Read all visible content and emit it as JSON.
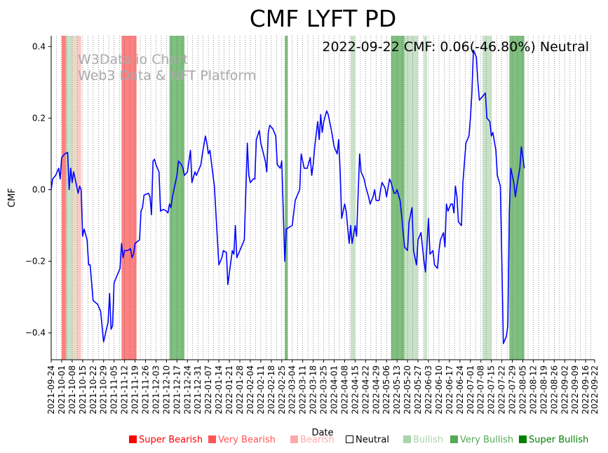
{
  "chart_data": {
    "type": "line",
    "title": "CMF LYFT PD",
    "xlabel": "Date",
    "ylabel": "CMF",
    "ylim": [
      -0.475,
      0.43
    ],
    "yticks": [
      -0.4,
      -0.2,
      0.0,
      0.2,
      0.4
    ],
    "ytick_labels": [
      "−0.4",
      "−0.2",
      "0.0",
      "0.2",
      "0.4"
    ],
    "x_start": "2021-09-24",
    "x_end": "2022-09-22",
    "date_ticks": [
      "2021-09-24",
      "2021-10-01",
      "2021-10-08",
      "2021-10-15",
      "2021-10-22",
      "2021-10-29",
      "2021-11-05",
      "2021-11-12",
      "2021-11-19",
      "2021-11-26",
      "2021-12-03",
      "2021-12-10",
      "2021-12-17",
      "2021-12-24",
      "2021-12-31",
      "2022-01-07",
      "2022-01-14",
      "2022-01-21",
      "2022-01-28",
      "2022-02-04",
      "2022-02-11",
      "2022-02-18",
      "2022-02-25",
      "2022-03-04",
      "2022-03-11",
      "2022-03-18",
      "2022-03-25",
      "2022-04-01",
      "2022-04-08",
      "2022-04-15",
      "2022-04-22",
      "2022-04-29",
      "2022-05-06",
      "2022-05-13",
      "2022-05-20",
      "2022-05-27",
      "2022-06-03",
      "2022-06-10",
      "2022-06-17",
      "2022-06-24",
      "2022-07-01",
      "2022-07-08",
      "2022-07-15",
      "2022-07-22",
      "2022-07-29",
      "2022-08-05",
      "2022-08-12",
      "2022-08-19",
      "2022-08-26",
      "2022-09-02",
      "2022-09-09",
      "2022-09-16",
      "2022-09-22"
    ],
    "series": [
      {
        "name": "CMF",
        "color": "#0000ff",
        "points": [
          [
            "2021-09-24",
            0.0
          ],
          [
            "2021-09-25",
            0.03
          ],
          [
            "2021-09-27",
            0.04
          ],
          [
            "2021-09-28",
            0.05
          ],
          [
            "2021-09-29",
            0.06
          ],
          [
            "2021-09-30",
            0.03
          ],
          [
            "2021-10-01",
            0.09
          ],
          [
            "2021-10-03",
            0.1
          ],
          [
            "2021-10-05",
            0.104
          ],
          [
            "2021-10-06",
            0.0
          ],
          [
            "2021-10-07",
            0.06
          ],
          [
            "2021-10-08",
            0.02
          ],
          [
            "2021-10-09",
            0.05
          ],
          [
            "2021-10-11",
            0.01
          ],
          [
            "2021-10-12",
            -0.01
          ],
          [
            "2021-10-13",
            0.01
          ],
          [
            "2021-10-14",
            0.0
          ],
          [
            "2021-10-15",
            -0.13
          ],
          [
            "2021-10-16",
            -0.11
          ],
          [
            "2021-10-18",
            -0.14
          ],
          [
            "2021-10-19",
            -0.21
          ],
          [
            "2021-10-20",
            -0.21
          ],
          [
            "2021-10-22",
            -0.31
          ],
          [
            "2021-10-25",
            -0.32
          ],
          [
            "2021-10-27",
            -0.34
          ],
          [
            "2021-10-29",
            -0.425
          ],
          [
            "2021-11-01",
            -0.37
          ],
          [
            "2021-11-02",
            -0.29
          ],
          [
            "2021-11-03",
            -0.39
          ],
          [
            "2021-11-04",
            -0.38
          ],
          [
            "2021-11-05",
            -0.26
          ],
          [
            "2021-11-07",
            -0.24
          ],
          [
            "2021-11-09",
            -0.22
          ],
          [
            "2021-11-10",
            -0.15
          ],
          [
            "2021-11-11",
            -0.19
          ],
          [
            "2021-11-12",
            -0.17
          ],
          [
            "2021-11-14",
            -0.17
          ],
          [
            "2021-11-16",
            -0.165
          ],
          [
            "2021-11-17",
            -0.19
          ],
          [
            "2021-11-18",
            -0.18
          ],
          [
            "2021-11-19",
            -0.15
          ],
          [
            "2021-11-22",
            -0.14
          ],
          [
            "2021-11-23",
            -0.06
          ],
          [
            "2021-11-24",
            -0.05
          ],
          [
            "2021-11-25",
            -0.015
          ],
          [
            "2021-11-28",
            -0.01
          ],
          [
            "2021-11-29",
            -0.02
          ],
          [
            "2021-11-30",
            -0.07
          ],
          [
            "2021-12-01",
            0.08
          ],
          [
            "2021-12-02",
            0.085
          ],
          [
            "2021-12-03",
            0.07
          ],
          [
            "2021-12-05",
            0.05
          ],
          [
            "2021-12-06",
            -0.06
          ],
          [
            "2021-12-08",
            -0.055
          ],
          [
            "2021-12-10",
            -0.06
          ],
          [
            "2021-12-11",
            -0.065
          ],
          [
            "2021-12-12",
            -0.04
          ],
          [
            "2021-12-13",
            -0.05
          ],
          [
            "2021-12-14",
            -0.02
          ],
          [
            "2021-12-17",
            0.04
          ],
          [
            "2021-12-18",
            0.08
          ],
          [
            "2021-12-20",
            0.07
          ],
          [
            "2021-12-21",
            0.06
          ],
          [
            "2021-12-22",
            0.04
          ],
          [
            "2021-12-24",
            0.05
          ],
          [
            "2021-12-26",
            0.11
          ],
          [
            "2021-12-27",
            0.02
          ],
          [
            "2021-12-29",
            0.05
          ],
          [
            "2021-12-30",
            0.04
          ],
          [
            "2022-01-01",
            0.06
          ],
          [
            "2022-01-02",
            0.07
          ],
          [
            "2022-01-03",
            0.1
          ],
          [
            "2022-01-05",
            0.15
          ],
          [
            "2022-01-06",
            0.13
          ],
          [
            "2022-01-07",
            0.1
          ],
          [
            "2022-01-08",
            0.11
          ],
          [
            "2022-01-11",
            0.01
          ],
          [
            "2022-01-14",
            -0.21
          ],
          [
            "2022-01-16",
            -0.19
          ],
          [
            "2022-01-17",
            -0.17
          ],
          [
            "2022-01-19",
            -0.175
          ],
          [
            "2022-01-20",
            -0.265
          ],
          [
            "2022-01-23",
            -0.17
          ],
          [
            "2022-01-24",
            -0.18
          ],
          [
            "2022-01-25",
            -0.1
          ],
          [
            "2022-01-26",
            -0.19
          ],
          [
            "2022-01-28",
            -0.17
          ],
          [
            "2022-01-30",
            -0.15
          ],
          [
            "2022-01-31",
            -0.14
          ],
          [
            "2022-02-02",
            0.13
          ],
          [
            "2022-02-03",
            0.04
          ],
          [
            "2022-02-04",
            0.02
          ],
          [
            "2022-02-06",
            0.03
          ],
          [
            "2022-02-07",
            0.03
          ],
          [
            "2022-02-08",
            0.14
          ],
          [
            "2022-02-10",
            0.165
          ],
          [
            "2022-02-11",
            0.13
          ],
          [
            "2022-02-14",
            0.08
          ],
          [
            "2022-02-15",
            0.05
          ],
          [
            "2022-02-16",
            0.16
          ],
          [
            "2022-02-17",
            0.18
          ],
          [
            "2022-02-19",
            0.17
          ],
          [
            "2022-02-21",
            0.15
          ],
          [
            "2022-02-22",
            0.07
          ],
          [
            "2022-02-24",
            0.06
          ],
          [
            "2022-02-25",
            0.08
          ],
          [
            "2022-02-27",
            -0.2
          ],
          [
            "2022-02-28",
            -0.11
          ],
          [
            "2022-03-02",
            -0.105
          ],
          [
            "2022-03-04",
            -0.1
          ],
          [
            "2022-03-06",
            -0.03
          ],
          [
            "2022-03-07",
            -0.02
          ],
          [
            "2022-03-09",
            0.0
          ],
          [
            "2022-03-10",
            0.1
          ],
          [
            "2022-03-12",
            0.06
          ],
          [
            "2022-03-14",
            0.06
          ],
          [
            "2022-03-16",
            0.09
          ],
          [
            "2022-03-17",
            0.04
          ],
          [
            "2022-03-18",
            0.07
          ],
          [
            "2022-03-19",
            0.12
          ],
          [
            "2022-03-21",
            0.19
          ],
          [
            "2022-03-22",
            0.14
          ],
          [
            "2022-03-23",
            0.21
          ],
          [
            "2022-03-24",
            0.16
          ],
          [
            "2022-03-25",
            0.19
          ],
          [
            "2022-03-27",
            0.22
          ],
          [
            "2022-03-28",
            0.21
          ],
          [
            "2022-03-30",
            0.17
          ],
          [
            "2022-04-01",
            0.12
          ],
          [
            "2022-04-03",
            0.1
          ],
          [
            "2022-04-04",
            0.14
          ],
          [
            "2022-04-05",
            0.05
          ],
          [
            "2022-04-06",
            -0.08
          ],
          [
            "2022-04-08",
            -0.04
          ],
          [
            "2022-04-09",
            -0.06
          ],
          [
            "2022-04-11",
            -0.15
          ],
          [
            "2022-04-12",
            -0.1
          ],
          [
            "2022-04-13",
            -0.15
          ],
          [
            "2022-04-15",
            -0.1
          ],
          [
            "2022-04-16",
            -0.13
          ],
          [
            "2022-04-18",
            0.1
          ],
          [
            "2022-04-19",
            0.05
          ],
          [
            "2022-04-21",
            0.03
          ],
          [
            "2022-04-22",
            0.01
          ],
          [
            "2022-04-24",
            -0.02
          ],
          [
            "2022-04-25",
            -0.04
          ],
          [
            "2022-04-27",
            -0.02
          ],
          [
            "2022-04-28",
            0.0
          ],
          [
            "2022-04-29",
            -0.03
          ],
          [
            "2022-05-01",
            -0.03
          ],
          [
            "2022-05-02",
            0.0
          ],
          [
            "2022-05-03",
            0.02
          ],
          [
            "2022-05-05",
            0.005
          ],
          [
            "2022-05-06",
            -0.02
          ],
          [
            "2022-05-08",
            0.03
          ],
          [
            "2022-05-09",
            0.02
          ],
          [
            "2022-05-11",
            -0.01
          ],
          [
            "2022-05-12",
            -0.01
          ],
          [
            "2022-05-13",
            0.0
          ],
          [
            "2022-05-15",
            -0.03
          ],
          [
            "2022-05-16",
            -0.07
          ],
          [
            "2022-05-18",
            -0.16
          ],
          [
            "2022-05-20",
            -0.17
          ],
          [
            "2022-05-21",
            -0.09
          ],
          [
            "2022-05-23",
            -0.05
          ],
          [
            "2022-05-24",
            -0.17
          ],
          [
            "2022-05-26",
            -0.21
          ],
          [
            "2022-05-27",
            -0.14
          ],
          [
            "2022-05-29",
            -0.12
          ],
          [
            "2022-05-31",
            -0.2
          ],
          [
            "2022-06-01",
            -0.23
          ],
          [
            "2022-06-03",
            -0.08
          ],
          [
            "2022-06-04",
            -0.18
          ],
          [
            "2022-06-06",
            -0.17
          ],
          [
            "2022-06-07",
            -0.21
          ],
          [
            "2022-06-09",
            -0.22
          ],
          [
            "2022-06-10",
            -0.17
          ],
          [
            "2022-06-11",
            -0.14
          ],
          [
            "2022-06-13",
            -0.12
          ],
          [
            "2022-06-14",
            -0.16
          ],
          [
            "2022-06-15",
            -0.04
          ],
          [
            "2022-06-16",
            -0.06
          ],
          [
            "2022-06-18",
            -0.04
          ],
          [
            "2022-06-19",
            -0.04
          ],
          [
            "2022-06-20",
            -0.065
          ],
          [
            "2022-06-21",
            0.01
          ],
          [
            "2022-06-22",
            -0.02
          ],
          [
            "2022-06-23",
            -0.09
          ],
          [
            "2022-06-25",
            -0.1
          ],
          [
            "2022-06-26",
            0.02
          ],
          [
            "2022-06-28",
            0.13
          ],
          [
            "2022-06-30",
            0.15
          ],
          [
            "2022-07-01",
            0.2
          ],
          [
            "2022-07-02",
            0.27
          ],
          [
            "2022-07-03",
            0.39
          ],
          [
            "2022-07-05",
            0.37
          ],
          [
            "2022-07-06",
            0.3
          ],
          [
            "2022-07-07",
            0.25
          ],
          [
            "2022-07-09",
            0.26
          ],
          [
            "2022-07-11",
            0.27
          ],
          [
            "2022-07-12",
            0.2
          ],
          [
            "2022-07-14",
            0.19
          ],
          [
            "2022-07-15",
            0.15
          ],
          [
            "2022-07-16",
            0.16
          ],
          [
            "2022-07-18",
            0.11
          ],
          [
            "2022-07-19",
            0.04
          ],
          [
            "2022-07-21",
            0.01
          ],
          [
            "2022-07-22",
            -0.2
          ],
          [
            "2022-07-23",
            -0.43
          ],
          [
            "2022-07-25",
            -0.41
          ],
          [
            "2022-07-26",
            -0.38
          ],
          [
            "2022-07-27",
            -0.06
          ],
          [
            "2022-07-28",
            0.06
          ],
          [
            "2022-07-30",
            0.02
          ],
          [
            "2022-07-31",
            -0.02
          ],
          [
            "2022-08-01",
            0.01
          ],
          [
            "2022-08-03",
            0.06
          ],
          [
            "2022-08-04",
            0.12
          ],
          [
            "2022-08-06",
            0.06
          ]
        ]
      }
    ],
    "signal_bands": [
      {
        "start": "2021-10-01",
        "end": "2021-10-04",
        "level": "very_bearish"
      },
      {
        "start": "2021-10-04",
        "end": "2021-10-08",
        "level": "bullish"
      },
      {
        "start": "2021-10-08",
        "end": "2021-10-12",
        "level": "neutral_tint"
      },
      {
        "start": "2021-10-12",
        "end": "2021-10-14",
        "level": "bearish"
      },
      {
        "start": "2021-11-10",
        "end": "2021-11-20",
        "level": "very_bearish"
      },
      {
        "start": "2021-12-12",
        "end": "2021-12-22",
        "level": "very_bullish"
      },
      {
        "start": "2022-02-27",
        "end": "2022-03-01",
        "level": "very_bullish"
      },
      {
        "start": "2022-04-12",
        "end": "2022-04-15",
        "level": "bullish"
      },
      {
        "start": "2022-05-09",
        "end": "2022-05-18",
        "level": "very_bullish"
      },
      {
        "start": "2022-05-18",
        "end": "2022-05-27",
        "level": "bullish"
      },
      {
        "start": "2022-05-31",
        "end": "2022-06-02",
        "level": "bullish"
      },
      {
        "start": "2022-07-09",
        "end": "2022-07-15",
        "level": "bullish"
      },
      {
        "start": "2022-07-27",
        "end": "2022-08-06",
        "level": "very_bullish"
      }
    ],
    "annotation": "2022-09-22 CMF: 0.06(-46.80%) Neutral",
    "watermark": [
      "W3Data.io Chart",
      "Web3 Data & NFT Platform"
    ],
    "legend": [
      {
        "label": "Super Bearish",
        "color": "#ff0000",
        "text_color": "#ff0000"
      },
      {
        "label": "Very Bearish",
        "color": "#ff5555",
        "text_color": "#ff5555"
      },
      {
        "label": "Bearish",
        "color": "#ffaaaa",
        "text_color": "#ffaaaa"
      },
      {
        "label": "Neutral",
        "color": "#ffffff",
        "text_color": "#000000"
      },
      {
        "label": "Bullish",
        "color": "#aad4aa",
        "text_color": "#aad4aa"
      },
      {
        "label": "Very Bullish",
        "color": "#55aa55",
        "text_color": "#55aa55"
      },
      {
        "label": "Super Bullish",
        "color": "#008000",
        "text_color": "#008000"
      }
    ],
    "band_colors": {
      "very_bearish": "#ff8080",
      "bearish": "#ffc6c6",
      "neutral_tint": "#ead9c8",
      "bullish": "#c8e2c8",
      "very_bullish": "#7fbf7f"
    }
  }
}
